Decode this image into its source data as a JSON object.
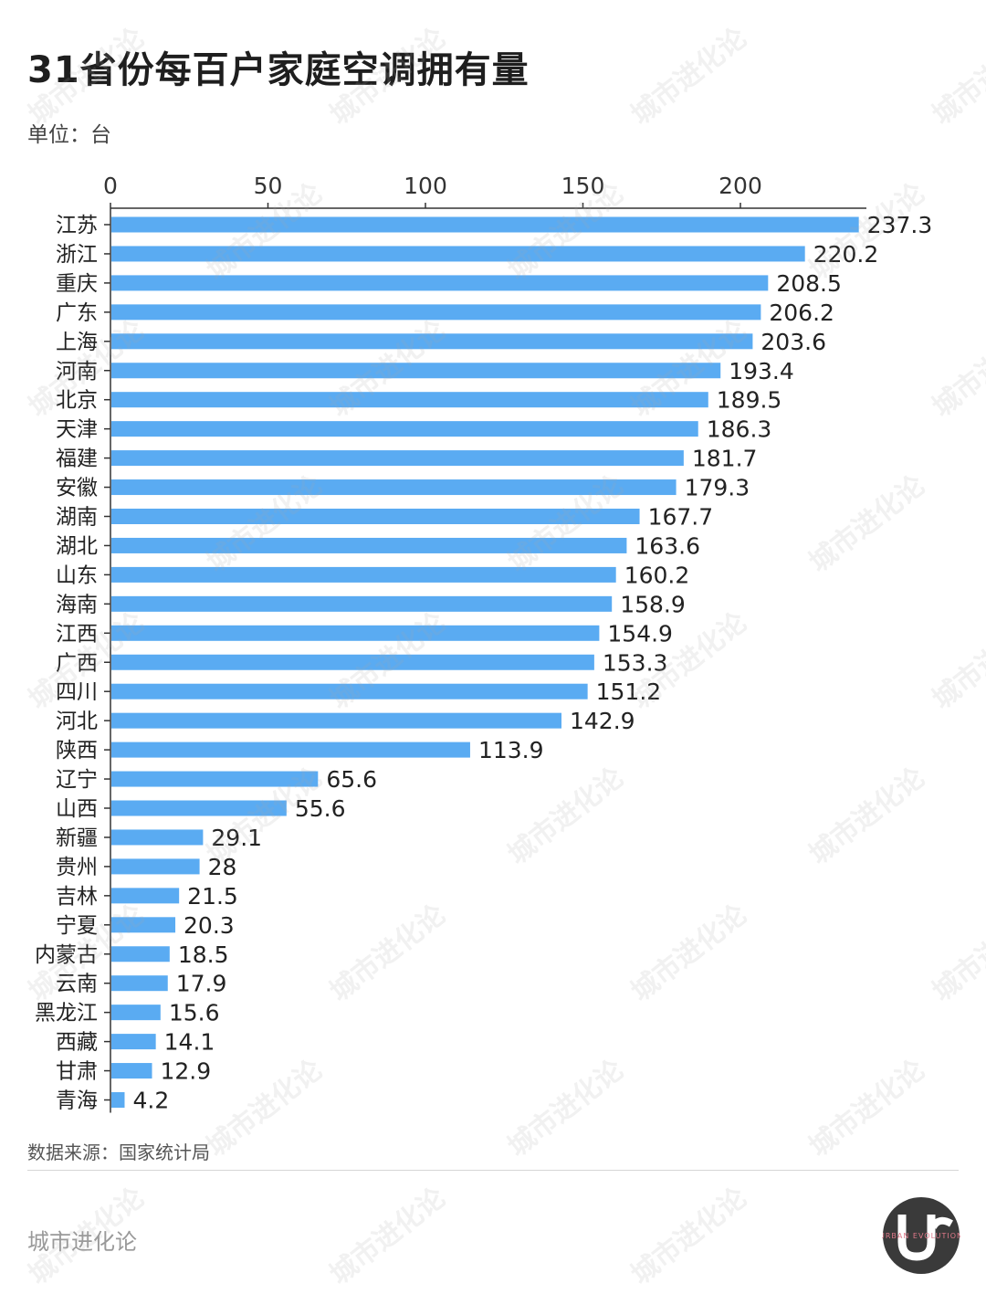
{
  "title": "31省份每百户家庭空调拥有量",
  "unit_label": "单位：台",
  "source_label": "数据来源：国家统计局",
  "brand_label": "城市进化论",
  "logo_text": "URBAN EVOLUTION",
  "watermark_text": "城市进化论",
  "colors": {
    "bar": "#5aabf2",
    "axis": "#333333",
    "text": "#222222"
  },
  "chart_data": {
    "type": "bar",
    "orientation": "horizontal",
    "title": "31省份每百户家庭空调拥有量",
    "unit": "单位：台",
    "xlim": [
      0,
      240
    ],
    "ticks": [
      0,
      50,
      100,
      150,
      200
    ],
    "tick_labels": [
      "0",
      "50",
      "100",
      "150",
      "200"
    ],
    "axis_position": "top",
    "grid": false,
    "legend": "none",
    "categories": [
      "江苏",
      "浙江",
      "重庆",
      "广东",
      "上海",
      "河南",
      "北京",
      "天津",
      "福建",
      "安徽",
      "湖南",
      "湖北",
      "山东",
      "海南",
      "江西",
      "广西",
      "四川",
      "河北",
      "陕西",
      "辽宁",
      "山西",
      "新疆",
      "贵州",
      "吉林",
      "宁夏",
      "内蒙古",
      "云南",
      "黑龙江",
      "西藏",
      "甘肃",
      "青海"
    ],
    "values": [
      237.3,
      220.2,
      208.5,
      206.2,
      203.6,
      193.4,
      189.5,
      186.3,
      181.7,
      179.3,
      167.7,
      163.6,
      160.2,
      158.9,
      154.9,
      153.3,
      151.2,
      142.9,
      113.9,
      65.6,
      55.6,
      29.1,
      28,
      21.5,
      20.3,
      18.5,
      17.9,
      15.6,
      14.1,
      12.9,
      4.2
    ],
    "value_labels": [
      "237.3",
      "220.2",
      "208.5",
      "206.2",
      "203.6",
      "193.4",
      "189.5",
      "186.3",
      "181.7",
      "179.3",
      "167.7",
      "163.6",
      "160.2",
      "158.9",
      "154.9",
      "153.3",
      "151.2",
      "142.9",
      "113.9",
      "65.6",
      "55.6",
      "29.1",
      "28",
      "21.5",
      "20.3",
      "18.5",
      "17.9",
      "15.6",
      "14.1",
      "12.9",
      "4.2"
    ]
  }
}
